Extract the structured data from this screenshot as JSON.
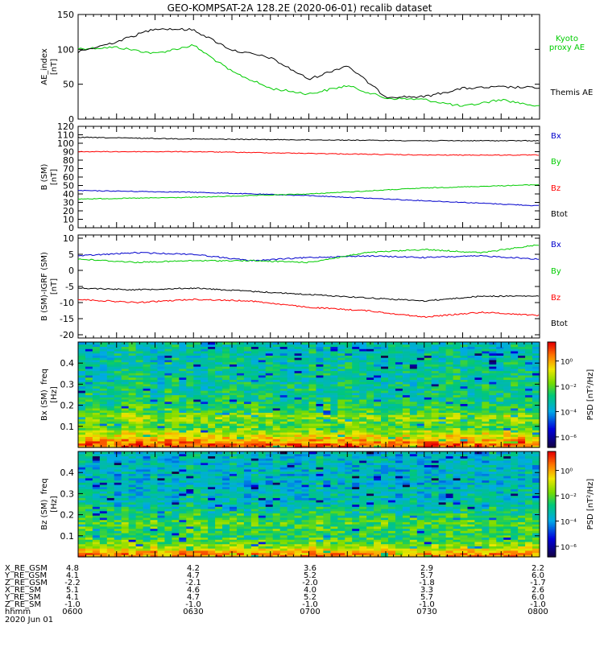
{
  "title": "GEO-KOMPSAT-2A 128.2E (2020-06-01) recalib dataset",
  "colors": {
    "black": "#000000",
    "red": "#ff0000",
    "green": "#00cc00",
    "blue": "#0000cc",
    "axis": "#000000"
  },
  "chart_data": [
    {
      "type": "line",
      "panel": "ae",
      "ylabel": "AE_index [nT]",
      "ylim": [
        0,
        150
      ],
      "yticks": [
        0,
        50,
        100,
        150
      ],
      "x": [
        "06:00",
        "06:10",
        "06:20",
        "06:30",
        "06:40",
        "06:50",
        "07:00",
        "07:10",
        "07:20",
        "07:30",
        "07:40",
        "07:50",
        "08:00"
      ],
      "series": [
        {
          "name": "Kyoto proxy AE",
          "color": "#00cc00",
          "values": [
            101,
            103,
            94,
            106,
            68,
            44,
            36,
            48,
            30,
            28,
            18,
            28,
            18
          ]
        },
        {
          "name": "Themis AE",
          "color": "#000000",
          "values": [
            96,
            111,
            130,
            128,
            99,
            88,
            57,
            77,
            32,
            32,
            44,
            46,
            45
          ]
        }
      ]
    },
    {
      "type": "line",
      "panel": "bsm",
      "ylabel": "B (SM) [nT]",
      "ylim": [
        0,
        120
      ],
      "yticks": [
        0,
        10,
        20,
        30,
        40,
        50,
        60,
        70,
        80,
        90,
        100,
        110,
        120
      ],
      "x": [
        "06:00",
        "06:30",
        "07:00",
        "07:30",
        "08:00"
      ],
      "series": [
        {
          "name": "Bx",
          "color": "#0000cc",
          "values": [
            44,
            42,
            38,
            32,
            26
          ]
        },
        {
          "name": "By",
          "color": "#00cc00",
          "values": [
            34,
            36,
            40,
            47,
            51
          ]
        },
        {
          "name": "Bz",
          "color": "#ff0000",
          "values": [
            90,
            90,
            88,
            86,
            86
          ]
        },
        {
          "name": "Btot",
          "color": "#000000",
          "values": [
            107,
            105,
            104,
            103,
            103
          ]
        }
      ]
    },
    {
      "type": "line",
      "panel": "bigrf",
      "ylabel": "B (SM)-IGRF (SM) [nT]",
      "ylim": [
        -21,
        11
      ],
      "yticks": [
        -20,
        -15,
        -10,
        -5,
        0,
        5,
        10
      ],
      "x": [
        "06:00",
        "06:15",
        "06:30",
        "06:45",
        "07:00",
        "07:15",
        "07:30",
        "07:45",
        "08:00"
      ],
      "series": [
        {
          "name": "Bx",
          "color": "#0000cc",
          "values": [
            4.5,
            5.5,
            5,
            3,
            4,
            4.5,
            4,
            4.5,
            3.5
          ]
        },
        {
          "name": "By",
          "color": "#00cc00",
          "values": [
            3.5,
            2.5,
            3,
            3,
            2.5,
            5.5,
            6.5,
            5.5,
            8
          ]
        },
        {
          "name": "Bz",
          "color": "#ff0000",
          "values": [
            -9,
            -10,
            -9,
            -9.5,
            -11.5,
            -12.5,
            -14.5,
            -13,
            -14
          ]
        },
        {
          "name": "Btot",
          "color": "#000000",
          "values": [
            -5.5,
            -6,
            -5.5,
            -6.5,
            -7.5,
            -8.5,
            -9.5,
            -8,
            -8
          ]
        }
      ]
    },
    {
      "type": "heatmap",
      "panel": "bxspec",
      "ylabel": "Bx (SM) freq [Hz]",
      "ylim": [
        0,
        0.5
      ],
      "yticks": [
        0.1,
        0.2,
        0.3,
        0.4
      ],
      "colorbar_label": "PSD [nT²/Hz]",
      "colorbar_ticks": [
        "10⁰",
        "10⁻²",
        "10⁻⁴",
        "10⁻⁶"
      ],
      "bands": [
        {
          "f": 0.02,
          "level": 0.9
        },
        {
          "f": 0.05,
          "level": 0.75
        },
        {
          "f": 0.1,
          "level": 0.58
        },
        {
          "f": 0.15,
          "level": 0.65
        },
        {
          "f": 0.17,
          "level": 0.55
        },
        {
          "f": 0.25,
          "level": 0.48
        },
        {
          "f": 0.35,
          "level": 0.46
        },
        {
          "f": 0.45,
          "level": 0.44
        }
      ]
    },
    {
      "type": "heatmap",
      "panel": "bzspec",
      "ylabel": "Bz (SM) freq [Hz]",
      "ylim": [
        0,
        0.5
      ],
      "yticks": [
        0.1,
        0.2,
        0.3,
        0.4
      ],
      "colorbar_label": "PSD [nT²/Hz]",
      "colorbar_ticks": [
        "10⁰",
        "10⁻²",
        "10⁻⁴",
        "10⁻⁶"
      ],
      "bands": [
        {
          "f": 0.02,
          "level": 0.85
        },
        {
          "f": 0.05,
          "level": 0.65
        },
        {
          "f": 0.1,
          "level": 0.52
        },
        {
          "f": 0.16,
          "level": 0.58
        },
        {
          "f": 0.25,
          "level": 0.43
        },
        {
          "f": 0.35,
          "level": 0.4
        },
        {
          "f": 0.45,
          "level": 0.4
        }
      ]
    }
  ],
  "legends": {
    "ae": [
      "Kyoto proxy AE",
      "Themis AE"
    ],
    "bsm": [
      "Bx",
      "By",
      "Bz",
      "Btot"
    ],
    "bigrf": [
      "Bx",
      "By",
      "Bz",
      "Btot"
    ]
  },
  "ephemeris": {
    "labels": [
      "X_RE_GSM",
      "Y_RE_GSM",
      "Z_RE_GSM",
      "X_RE_SM",
      "Y_RE_SM",
      "Z_RE_SM",
      "hhmm",
      "2020 Jun 01"
    ],
    "columns": [
      [
        "4.8",
        "4.1",
        "-2.2",
        "5.1",
        "4.1",
        "-1.0",
        "0600"
      ],
      [
        "4.2",
        "4.7",
        "-2.1",
        "4.6",
        "4.7",
        "-1.0",
        "0630"
      ],
      [
        "3.6",
        "5.2",
        "-2.0",
        "4.0",
        "5.2",
        "-1.0",
        "0700"
      ],
      [
        "2.9",
        "5.7",
        "-1.8",
        "3.3",
        "5.7",
        "-1.0",
        "0730"
      ],
      [
        "2.2",
        "6.0",
        "-1.7",
        "2.6",
        "6.0",
        "-1.0",
        "0800"
      ]
    ]
  }
}
